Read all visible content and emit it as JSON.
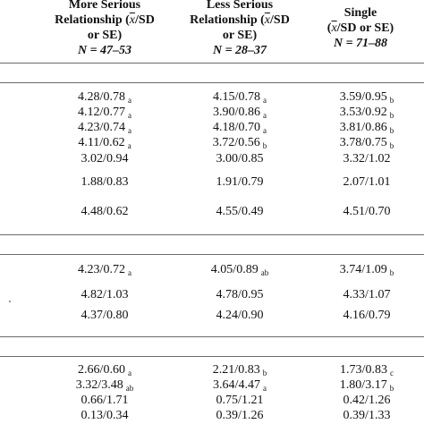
{
  "columns": [
    {
      "line1": "More Serious",
      "line2a": "Relationship (",
      "xbar": "x",
      "line2b": "/SD",
      "line3": "or SE)",
      "n": "N = 47–53"
    },
    {
      "line1": "Less Serious",
      "line2a": "Relationship (",
      "xbar": "x",
      "line2b": "/SD",
      "line3": "or SE)",
      "n": "N = 28–37"
    },
    {
      "line1": "Single",
      "line2a": "(",
      "xbar": "x",
      "line2b": "/SD or SE)",
      "line3": "",
      "n": "N = 71–88"
    }
  ],
  "sections": [
    {
      "rows": [
        [
          {
            "v": "4.28/0.78",
            "s": "a"
          },
          {
            "v": "4.15/0.78",
            "s": "a"
          },
          {
            "v": "3.59/0.95",
            "s": "b"
          }
        ],
        [
          {
            "v": "4.12/0.77",
            "s": "a"
          },
          {
            "v": "3.90/0.86",
            "s": "a"
          },
          {
            "v": "3.53/0.92",
            "s": "b"
          }
        ],
        [
          {
            "v": "4.23/0.74",
            "s": "a"
          },
          {
            "v": "4.18/0.70",
            "s": "a"
          },
          {
            "v": "3.81/0.86",
            "s": "b"
          }
        ],
        [
          {
            "v": "4.11/0.62",
            "s": "a"
          },
          {
            "v": "3.72/0.56",
            "s": "b"
          },
          {
            "v": "3.78/0.75",
            "s": "b"
          }
        ],
        [
          {
            "v": "3.02/0.94",
            "s": ""
          },
          {
            "v": "3.00/0.85",
            "s": ""
          },
          {
            "v": "3.32/1.02",
            "s": ""
          }
        ],
        [
          {
            "v": "1.88/0.83",
            "s": ""
          },
          {
            "v": "1.91/0.79",
            "s": ""
          },
          {
            "v": "2.07/1.01",
            "s": ""
          }
        ],
        [
          {
            "v": "4.48/0.62",
            "s": ""
          },
          {
            "v": "4.55/0.49",
            "s": ""
          },
          {
            "v": "4.51/0.70",
            "s": ""
          }
        ]
      ]
    },
    {
      "rows": [
        [
          {
            "v": "4.23/0.72",
            "s": "a"
          },
          {
            "v": "4.05/0.89",
            "s": "ab"
          },
          {
            "v": "3.74/1.09",
            "s": "b"
          }
        ],
        [
          {
            "v": "4.82/1.03",
            "s": ""
          },
          {
            "v": "4.78/0.95",
            "s": ""
          },
          {
            "v": "4.33/1.07",
            "s": ""
          }
        ],
        [
          {
            "v": "4.37/0.80",
            "s": ""
          },
          {
            "v": "4.24/0.90",
            "s": ""
          },
          {
            "v": "4.16/0.79",
            "s": ""
          }
        ]
      ]
    },
    {
      "rows": [
        [
          {
            "v": "2.66/0.60",
            "s": "a"
          },
          {
            "v": "2.21/0.83",
            "s": "b"
          },
          {
            "v": "1.73/0.83",
            "s": "c"
          }
        ],
        [
          {
            "v": "3.32/3.48",
            "s": "ab"
          },
          {
            "v": "3.64/4.47",
            "s": "a"
          },
          {
            "v": "1.80/3.17",
            "s": "b"
          }
        ],
        [
          {
            "v": "0.66/1.71",
            "s": ""
          },
          {
            "v": "0.75/1.21",
            "s": ""
          },
          {
            "v": "0.42/1.26",
            "s": ""
          }
        ],
        [
          {
            "v": "0.13/0.34",
            "s": ""
          },
          {
            "v": "0.39/1.26",
            "s": ""
          },
          {
            "v": "0.39/1.33",
            "s": ""
          }
        ]
      ]
    }
  ]
}
